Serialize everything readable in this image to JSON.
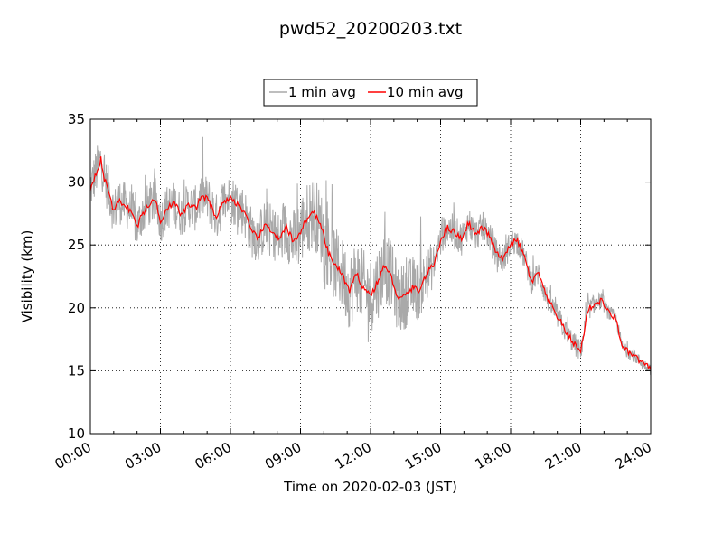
{
  "chart_data": {
    "type": "line",
    "title": "pwd52_20200203.txt",
    "xlabel": "Time on 2020-02-03 (JST)",
    "ylabel": "Visibility (km)",
    "x_tick_labels": [
      "00:00",
      "03:00",
      "06:00",
      "09:00",
      "12:00",
      "15:00",
      "18:00",
      "21:00",
      "24:00"
    ],
    "x_tick_hours": [
      0,
      3,
      6,
      9,
      12,
      15,
      18,
      21,
      24
    ],
    "xlim_hours": [
      0,
      24
    ],
    "ylim": [
      10,
      35
    ],
    "y_ticks": [
      10,
      15,
      20,
      25,
      30,
      35
    ],
    "grid": true,
    "legend_position": "top-center",
    "series": [
      {
        "name": "1 min avg",
        "color": "#a9a9a9",
        "kind": "1-minute averages, noisy around the 10 min trend",
        "noise_profile_hours": [
          0,
          1.5,
          4,
          6,
          8,
          9,
          12,
          14,
          15,
          16.5,
          18,
          19,
          21,
          22.5,
          24
        ],
        "noise_profile_km": [
          2.2,
          2.0,
          2.0,
          2.2,
          2.4,
          3.2,
          3.4,
          2.8,
          1.6,
          1.4,
          1.2,
          1.1,
          1.0,
          0.6,
          0.5
        ]
      },
      {
        "name": "10 min avg",
        "color": "#ff0000",
        "hours": [
          0.0,
          0.25,
          0.45,
          0.6,
          0.8,
          1.0,
          1.2,
          1.5,
          1.8,
          2.0,
          2.2,
          2.5,
          2.8,
          3.0,
          3.3,
          3.6,
          3.9,
          4.2,
          4.5,
          4.8,
          5.1,
          5.4,
          5.7,
          6.0,
          6.3,
          6.6,
          6.9,
          7.2,
          7.5,
          7.8,
          8.1,
          8.4,
          8.7,
          9.0,
          9.3,
          9.6,
          9.9,
          10.2,
          10.5,
          10.8,
          11.1,
          11.4,
          11.7,
          12.0,
          12.3,
          12.6,
          12.9,
          13.2,
          13.5,
          13.8,
          14.1,
          14.4,
          14.7,
          15.0,
          15.3,
          15.6,
          15.9,
          16.2,
          16.5,
          16.8,
          17.1,
          17.4,
          17.7,
          18.0,
          18.3,
          18.6,
          18.9,
          19.2,
          19.5,
          19.8,
          20.1,
          20.4,
          20.7,
          21.0,
          21.3,
          21.6,
          21.9,
          22.2,
          22.5,
          22.8,
          23.1,
          23.4,
          23.7,
          24.0
        ],
        "values": [
          29.5,
          30.8,
          31.8,
          30.2,
          29.3,
          27.6,
          28.5,
          28.2,
          27.5,
          26.4,
          27.4,
          28.2,
          28.6,
          26.9,
          28.0,
          28.3,
          27.4,
          28.2,
          27.9,
          29.0,
          28.4,
          27.2,
          28.5,
          28.7,
          28.3,
          27.6,
          26.0,
          25.6,
          26.6,
          26.1,
          25.4,
          26.4,
          25.2,
          26.1,
          27.2,
          27.6,
          26.3,
          24.3,
          23.4,
          22.6,
          21.3,
          22.7,
          21.6,
          21.0,
          22.0,
          23.4,
          22.4,
          20.6,
          21.0,
          21.6,
          21.4,
          22.7,
          23.4,
          25.4,
          26.4,
          26.0,
          25.5,
          26.8,
          25.8,
          26.4,
          25.7,
          24.3,
          23.8,
          25.2,
          25.3,
          24.0,
          22.0,
          22.8,
          21.0,
          20.0,
          19.0,
          18.0,
          17.2,
          16.5,
          19.8,
          20.3,
          20.6,
          19.6,
          19.2,
          16.8,
          16.4,
          16.0,
          15.5,
          15.2
        ]
      }
    ]
  }
}
